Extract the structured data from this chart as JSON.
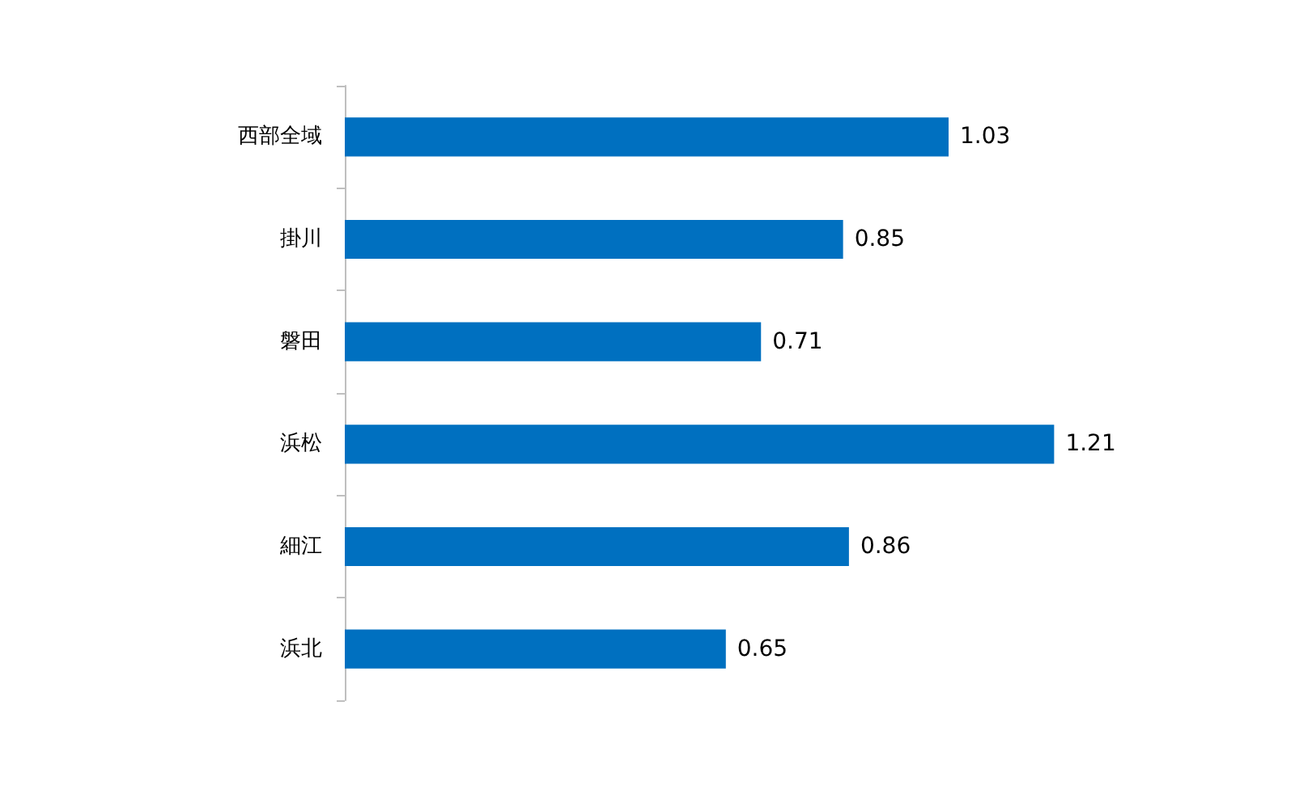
{
  "chart_data": {
    "type": "bar",
    "orientation": "horizontal",
    "categories": [
      "西部全域",
      "掛川",
      "磐田",
      "浜松",
      "細江",
      "浜北"
    ],
    "values": [
      1.03,
      0.85,
      0.71,
      1.21,
      0.86,
      0.65
    ],
    "color": "#0070c0",
    "data_labels": true
  }
}
